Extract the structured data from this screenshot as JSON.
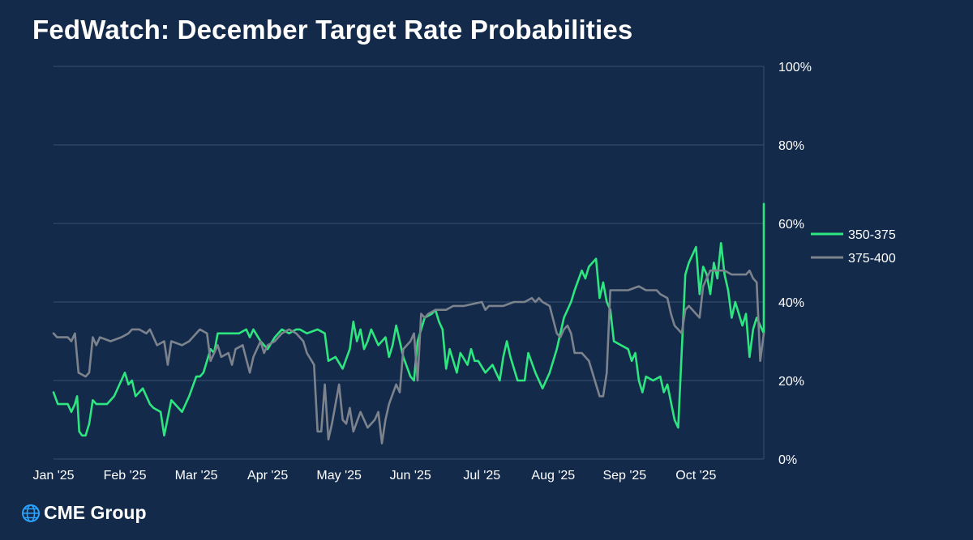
{
  "chart_data": {
    "type": "line",
    "title": "FedWatch: December Target Rate Probabilities",
    "xlabel": "",
    "ylabel": "",
    "x_tick_labels": [
      "Jan '25",
      "Feb '25",
      "Mar '25",
      "Apr '25",
      "May '25",
      "Jun '25",
      "Jul '25",
      "Aug '25",
      "Sep '25",
      "Oct '25"
    ],
    "y_tick_labels": [
      "0%",
      "20%",
      "40%",
      "60%",
      "80%",
      "100%"
    ],
    "ylim": [
      0,
      100
    ],
    "xlim": [
      0,
      9.95
    ],
    "grid": "horizontal",
    "legend_position": "right",
    "x_unit": "months since Jan '25",
    "series": [
      {
        "name": "350-375",
        "color": "#2ee67f",
        "points": [
          [
            0,
            17
          ],
          [
            0.06,
            14
          ],
          [
            0.2,
            14
          ],
          [
            0.25,
            12
          ],
          [
            0.3,
            14
          ],
          [
            0.33,
            16
          ],
          [
            0.36,
            7
          ],
          [
            0.4,
            6
          ],
          [
            0.45,
            6
          ],
          [
            0.5,
            9
          ],
          [
            0.55,
            15
          ],
          [
            0.6,
            14
          ],
          [
            0.75,
            14
          ],
          [
            0.85,
            16
          ],
          [
            0.95,
            20
          ],
          [
            1,
            22
          ],
          [
            1.05,
            19
          ],
          [
            1.1,
            20
          ],
          [
            1.15,
            16
          ],
          [
            1.25,
            18
          ],
          [
            1.35,
            14
          ],
          [
            1.4,
            13
          ],
          [
            1.5,
            12
          ],
          [
            1.55,
            6
          ],
          [
            1.65,
            15
          ],
          [
            1.75,
            13
          ],
          [
            1.8,
            12
          ],
          [
            1.9,
            16
          ],
          [
            2,
            21
          ],
          [
            2.05,
            21
          ],
          [
            2.1,
            22
          ],
          [
            2.2,
            28
          ],
          [
            2.25,
            27
          ],
          [
            2.3,
            32
          ],
          [
            2.6,
            32
          ],
          [
            2.7,
            33
          ],
          [
            2.75,
            31
          ],
          [
            2.8,
            33
          ],
          [
            2.9,
            30
          ],
          [
            3,
            28
          ],
          [
            3.1,
            31
          ],
          [
            3.2,
            33
          ],
          [
            3.3,
            32
          ],
          [
            3.4,
            33
          ],
          [
            3.45,
            33
          ],
          [
            3.55,
            32
          ],
          [
            3.7,
            33
          ],
          [
            3.8,
            32
          ],
          [
            3.85,
            25
          ],
          [
            3.95,
            26
          ],
          [
            4.05,
            23
          ],
          [
            4.15,
            28
          ],
          [
            4.2,
            35
          ],
          [
            4.25,
            30
          ],
          [
            4.3,
            33
          ],
          [
            4.35,
            28
          ],
          [
            4.4,
            30
          ],
          [
            4.45,
            33
          ],
          [
            4.55,
            29
          ],
          [
            4.65,
            31
          ],
          [
            4.7,
            26
          ],
          [
            4.75,
            29
          ],
          [
            4.8,
            34
          ],
          [
            4.9,
            26
          ],
          [
            5,
            21
          ],
          [
            5.05,
            20
          ],
          [
            5.1,
            30
          ],
          [
            5.2,
            36
          ],
          [
            5.3,
            37
          ],
          [
            5.35,
            38
          ],
          [
            5.4,
            35
          ],
          [
            5.45,
            33
          ],
          [
            5.5,
            23
          ],
          [
            5.55,
            28
          ],
          [
            5.65,
            22
          ],
          [
            5.7,
            27
          ],
          [
            5.8,
            24
          ],
          [
            5.85,
            28
          ],
          [
            5.9,
            25
          ],
          [
            5.95,
            25
          ],
          [
            6.05,
            22
          ],
          [
            6.15,
            24
          ],
          [
            6.25,
            20
          ],
          [
            6.3,
            26
          ],
          [
            6.35,
            30
          ],
          [
            6.4,
            26
          ],
          [
            6.5,
            20
          ],
          [
            6.6,
            20
          ],
          [
            6.65,
            27
          ],
          [
            6.75,
            22
          ],
          [
            6.85,
            18
          ],
          [
            6.9,
            20
          ],
          [
            6.95,
            22
          ],
          [
            7.05,
            28
          ],
          [
            7.15,
            36
          ],
          [
            7.25,
            40
          ],
          [
            7.3,
            43
          ],
          [
            7.4,
            48
          ],
          [
            7.45,
            46
          ],
          [
            7.5,
            49
          ],
          [
            7.6,
            51
          ],
          [
            7.65,
            41
          ],
          [
            7.7,
            45
          ],
          [
            7.75,
            40
          ],
          [
            7.8,
            38
          ],
          [
            7.85,
            30
          ],
          [
            7.95,
            29
          ],
          [
            8.05,
            28
          ],
          [
            8.1,
            25
          ],
          [
            8.15,
            27
          ],
          [
            8.2,
            20
          ],
          [
            8.25,
            17
          ],
          [
            8.3,
            21
          ],
          [
            8.4,
            20
          ],
          [
            8.5,
            21
          ],
          [
            8.55,
            17
          ],
          [
            8.6,
            19
          ],
          [
            8.7,
            10
          ],
          [
            8.75,
            8
          ],
          [
            8.85,
            47
          ],
          [
            8.9,
            50
          ],
          [
            9,
            54
          ],
          [
            9.05,
            42
          ],
          [
            9.1,
            49
          ],
          [
            9.15,
            47
          ],
          [
            9.2,
            42
          ],
          [
            9.25,
            50
          ],
          [
            9.3,
            46
          ],
          [
            9.35,
            55
          ],
          [
            9.4,
            47
          ],
          [
            9.45,
            43
          ],
          [
            9.5,
            36
          ],
          [
            9.55,
            40
          ],
          [
            9.65,
            34
          ],
          [
            9.7,
            37
          ],
          [
            9.75,
            26
          ],
          [
            9.8,
            33
          ],
          [
            9.85,
            36
          ],
          [
            9.9,
            34
          ],
          [
            9.95,
            32
          ],
          [
            9.95,
            65
          ]
        ]
      },
      {
        "name": "375-400",
        "color": "#7d838d",
        "points": [
          [
            0,
            32
          ],
          [
            0.05,
            31
          ],
          [
            0.2,
            31
          ],
          [
            0.25,
            30
          ],
          [
            0.3,
            32
          ],
          [
            0.35,
            22
          ],
          [
            0.45,
            21
          ],
          [
            0.5,
            22
          ],
          [
            0.55,
            31
          ],
          [
            0.6,
            29
          ],
          [
            0.65,
            31
          ],
          [
            0.8,
            30
          ],
          [
            0.95,
            31
          ],
          [
            1.05,
            32
          ],
          [
            1.1,
            33
          ],
          [
            1.2,
            33
          ],
          [
            1.3,
            32
          ],
          [
            1.35,
            33
          ],
          [
            1.45,
            29
          ],
          [
            1.55,
            30
          ],
          [
            1.6,
            24
          ],
          [
            1.65,
            30
          ],
          [
            1.8,
            29
          ],
          [
            1.9,
            30
          ],
          [
            2,
            32
          ],
          [
            2.05,
            33
          ],
          [
            2.15,
            32
          ],
          [
            2.2,
            25
          ],
          [
            2.3,
            29
          ],
          [
            2.35,
            26
          ],
          [
            2.45,
            27
          ],
          [
            2.5,
            24
          ],
          [
            2.55,
            28
          ],
          [
            2.65,
            29
          ],
          [
            2.75,
            22
          ],
          [
            2.8,
            26
          ],
          [
            2.9,
            30
          ],
          [
            2.95,
            27
          ],
          [
            3,
            29
          ],
          [
            3.1,
            30
          ],
          [
            3.2,
            32
          ],
          [
            3.3,
            33
          ],
          [
            3.4,
            32
          ],
          [
            3.5,
            30
          ],
          [
            3.55,
            27
          ],
          [
            3.65,
            24
          ],
          [
            3.7,
            7
          ],
          [
            3.75,
            7
          ],
          [
            3.8,
            19
          ],
          [
            3.85,
            5
          ],
          [
            3.9,
            9
          ],
          [
            4,
            19
          ],
          [
            4.05,
            10
          ],
          [
            4.1,
            9
          ],
          [
            4.15,
            13
          ],
          [
            4.2,
            7
          ],
          [
            4.3,
            12
          ],
          [
            4.4,
            8
          ],
          [
            4.5,
            10
          ],
          [
            4.55,
            12
          ],
          [
            4.6,
            4
          ],
          [
            4.65,
            10
          ],
          [
            4.7,
            14
          ],
          [
            4.8,
            19
          ],
          [
            4.85,
            17
          ],
          [
            4.9,
            28
          ],
          [
            5,
            30
          ],
          [
            5.05,
            32
          ],
          [
            5.1,
            20
          ],
          [
            5.15,
            37
          ],
          [
            5.2,
            36
          ],
          [
            5.25,
            37
          ],
          [
            5.35,
            38
          ],
          [
            5.5,
            38
          ],
          [
            5.6,
            39
          ],
          [
            5.75,
            39
          ],
          [
            6,
            40
          ],
          [
            6.05,
            38
          ],
          [
            6.1,
            39
          ],
          [
            6.3,
            39
          ],
          [
            6.45,
            40
          ],
          [
            6.6,
            40
          ],
          [
            6.7,
            41
          ],
          [
            6.75,
            40
          ],
          [
            6.8,
            41
          ],
          [
            6.85,
            40
          ],
          [
            6.95,
            39
          ],
          [
            7.05,
            32
          ],
          [
            7.1,
            31
          ],
          [
            7.15,
            33
          ],
          [
            7.2,
            34
          ],
          [
            7.25,
            32
          ],
          [
            7.3,
            27
          ],
          [
            7.4,
            27
          ],
          [
            7.45,
            26
          ],
          [
            7.5,
            25
          ],
          [
            7.55,
            22
          ],
          [
            7.6,
            19
          ],
          [
            7.65,
            16
          ],
          [
            7.7,
            16
          ],
          [
            7.75,
            22
          ],
          [
            7.8,
            43
          ],
          [
            7.9,
            43
          ],
          [
            8.05,
            43
          ],
          [
            8.2,
            44
          ],
          [
            8.3,
            43
          ],
          [
            8.45,
            43
          ],
          [
            8.5,
            42
          ],
          [
            8.6,
            41
          ],
          [
            8.65,
            37
          ],
          [
            8.7,
            34
          ],
          [
            8.75,
            33
          ],
          [
            8.8,
            32
          ],
          [
            8.85,
            38
          ],
          [
            8.9,
            39
          ],
          [
            9,
            37
          ],
          [
            9.05,
            36
          ],
          [
            9.1,
            44
          ],
          [
            9.15,
            46
          ],
          [
            9.2,
            48
          ],
          [
            9.3,
            48
          ],
          [
            9.4,
            48
          ],
          [
            9.5,
            47
          ],
          [
            9.6,
            47
          ],
          [
            9.7,
            47
          ],
          [
            9.75,
            48
          ],
          [
            9.8,
            46
          ],
          [
            9.85,
            45
          ],
          [
            9.9,
            25
          ],
          [
            9.95,
            32
          ]
        ]
      }
    ]
  },
  "brand": {
    "name": "CME Group"
  }
}
